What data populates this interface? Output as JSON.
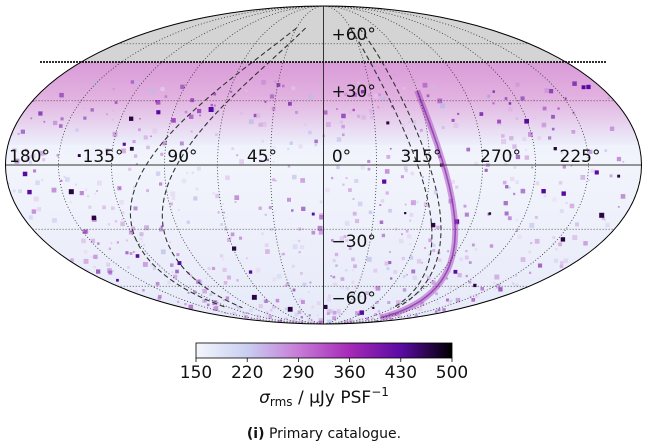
{
  "chart_data": {
    "type": "heatmap",
    "projection": "mollweide",
    "longitude_labels": [
      "180°",
      "135°",
      "90°",
      "45°",
      "0°",
      "315°",
      "270°",
      "225°"
    ],
    "latitude_labels": [
      "+60°",
      "+30°",
      "−30°",
      "−60°"
    ],
    "longitude_label_values": [
      180,
      135,
      90,
      45,
      0,
      315,
      270,
      225
    ],
    "latitude_label_values": [
      60,
      30,
      -30,
      -60
    ],
    "masked_region_above_dec": 41,
    "masked_color": "#d4d4d4",
    "colorbar": {
      "ticks": [
        "150",
        "220",
        "290",
        "360",
        "430",
        "500"
      ],
      "tick_values": [
        150,
        220,
        290,
        360,
        430,
        500
      ],
      "range": [
        150,
        500
      ],
      "colors": [
        "#f4f6fd",
        "#c9cff0",
        "#c77bd8",
        "#a62ab7",
        "#5a0aa3",
        "#000000"
      ],
      "label_main": "σ",
      "label_sub": "rms",
      "label_rest": " / μJy PSF",
      "label_sup": "−1"
    },
    "caption": {
      "tag": "(i)",
      "text": "Primary catalogue."
    }
  }
}
